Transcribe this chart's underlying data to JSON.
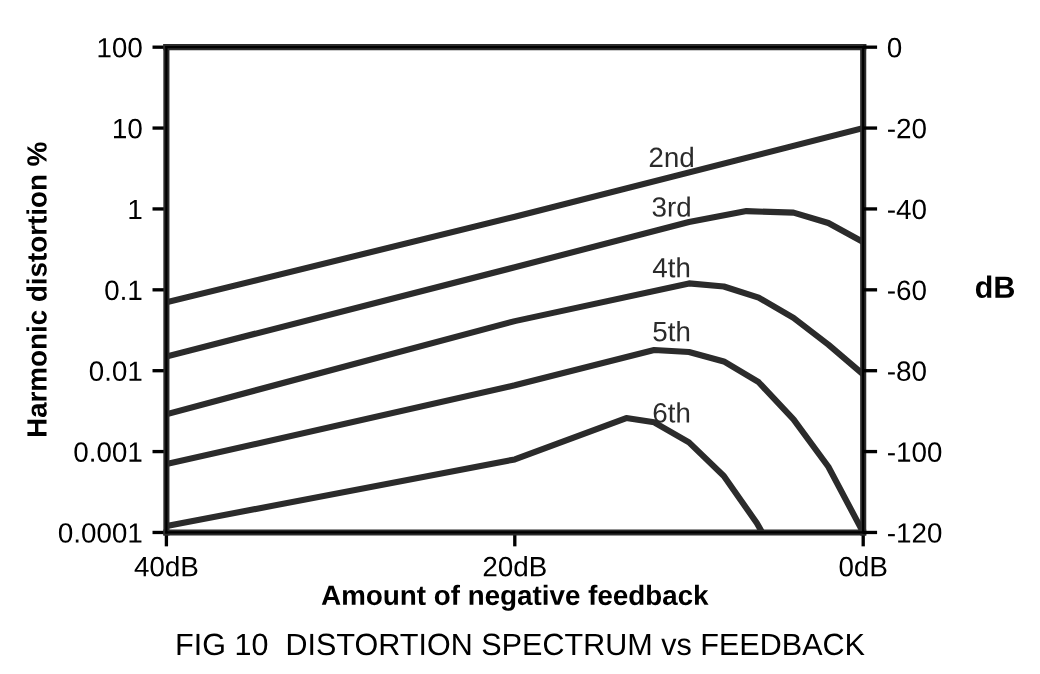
{
  "chart_data": {
    "type": "line",
    "title": "FIG 10  DISTORTION SPECTRUM vs FEEDBACK",
    "xlabel": "Amount of negative feedback",
    "ylabel": "Harmonic distortion %",
    "y2label": "dB",
    "log": "y",
    "grid": false,
    "legend": false,
    "marker": "none",
    "line_style": "solid",
    "xlim": [
      40,
      0
    ],
    "xticks": [
      {
        "value": 40,
        "label": "40dB"
      },
      {
        "value": 20,
        "label": "20dB"
      },
      {
        "value": 0,
        "label": "0dB"
      }
    ],
    "ylim": [
      0.0001,
      100
    ],
    "yticks": [
      100,
      10,
      1,
      0.1,
      0.01,
      0.001,
      0.0001
    ],
    "y2lim": [
      -120,
      0
    ],
    "y2ticks": [
      0,
      -20,
      -40,
      -60,
      -80,
      -100,
      -120
    ],
    "series": [
      {
        "name": "2nd",
        "color": "#2b2b2b",
        "x": [
          40,
          20,
          0
        ],
        "values": [
          0.07,
          0.8,
          10
        ]
      },
      {
        "name": "3rd",
        "color": "#2b2b2b",
        "x": [
          40,
          20,
          10,
          6.7,
          4,
          2,
          0
        ],
        "values": [
          0.015,
          0.19,
          0.69,
          0.94,
          0.9,
          0.67,
          0.39
        ]
      },
      {
        "name": "4th",
        "color": "#2b2b2b",
        "x": [
          40,
          20,
          10,
          8,
          6,
          4,
          2,
          0
        ],
        "values": [
          0.0029,
          0.041,
          0.12,
          0.11,
          0.08,
          0.045,
          0.021,
          0.009
        ]
      },
      {
        "name": "5th",
        "color": "#2b2b2b",
        "x": [
          40,
          20,
          12,
          10,
          8,
          6,
          4,
          2,
          0
        ],
        "values": [
          0.0007,
          0.0066,
          0.018,
          0.017,
          0.013,
          0.0072,
          0.0025,
          0.00065,
          0.0001
        ]
      },
      {
        "name": "6th",
        "color": "#2b2b2b",
        "x": [
          40,
          20,
          13.6,
          12,
          10,
          8,
          6.1,
          5.8
        ],
        "values": [
          0.00012,
          0.0008,
          0.0026,
          0.0023,
          0.0013,
          0.0005,
          0.00013,
          0.0001
        ]
      }
    ]
  }
}
